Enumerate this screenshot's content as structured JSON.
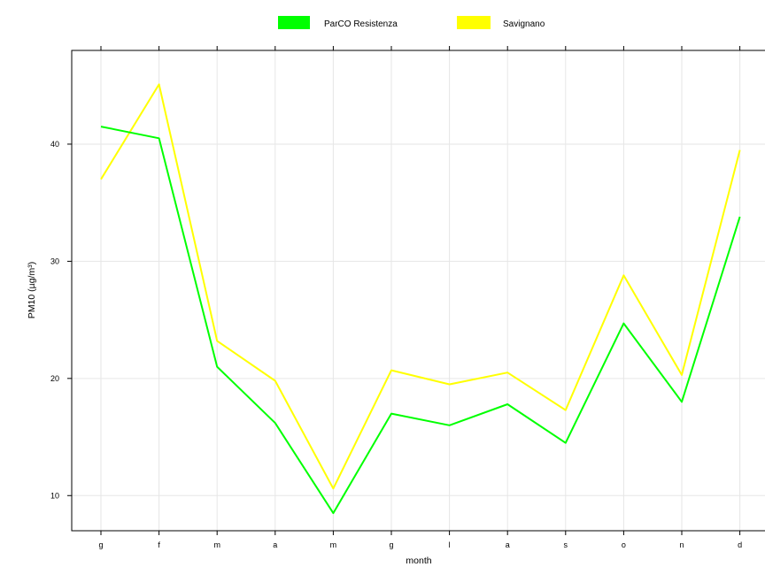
{
  "chart_data": {
    "type": "line",
    "xlabel": "month",
    "ylabel": "PM10 (µg/m³)",
    "categories": [
      "g",
      "f",
      "m",
      "a",
      "m",
      "g",
      "l",
      "a",
      "s",
      "o",
      "n",
      "d"
    ],
    "ylim": [
      7,
      48
    ],
    "yticks": [
      10,
      20,
      30,
      40
    ],
    "grid": true,
    "legend_position": "top",
    "series": [
      {
        "name": "ParCO Resistenza",
        "color": "#00ff00",
        "values": [
          41.5,
          40.5,
          21.0,
          16.2,
          8.5,
          17.0,
          16.0,
          17.8,
          14.5,
          24.7,
          18.0,
          33.8
        ]
      },
      {
        "name": "Savignano",
        "color": "#ffff00",
        "values": [
          37.0,
          45.1,
          23.2,
          19.8,
          10.6,
          20.7,
          19.5,
          20.5,
          17.3,
          28.8,
          20.3,
          39.5
        ]
      }
    ]
  }
}
